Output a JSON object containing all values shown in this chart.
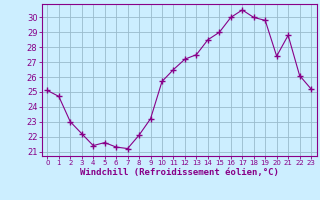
{
  "x": [
    0,
    1,
    2,
    3,
    4,
    5,
    6,
    7,
    8,
    9,
    10,
    11,
    12,
    13,
    14,
    15,
    16,
    17,
    18,
    19,
    20,
    21,
    22,
    23
  ],
  "y": [
    25.1,
    24.7,
    23.0,
    22.2,
    21.4,
    21.6,
    21.3,
    21.2,
    22.1,
    23.2,
    25.7,
    26.5,
    27.2,
    27.5,
    28.5,
    29.0,
    30.0,
    30.5,
    30.0,
    29.8,
    27.4,
    28.8,
    26.1,
    25.2
  ],
  "yticks": [
    21,
    22,
    23,
    24,
    25,
    26,
    27,
    28,
    29,
    30
  ],
  "xlabel": "Windchill (Refroidissement éolien,°C)",
  "line_color": "#880088",
  "marker_color": "#880088",
  "bg_color": "#cceeff",
  "grid_color": "#99bbcc",
  "axis_color": "#880088",
  "tick_color": "#880088",
  "label_color": "#880088"
}
